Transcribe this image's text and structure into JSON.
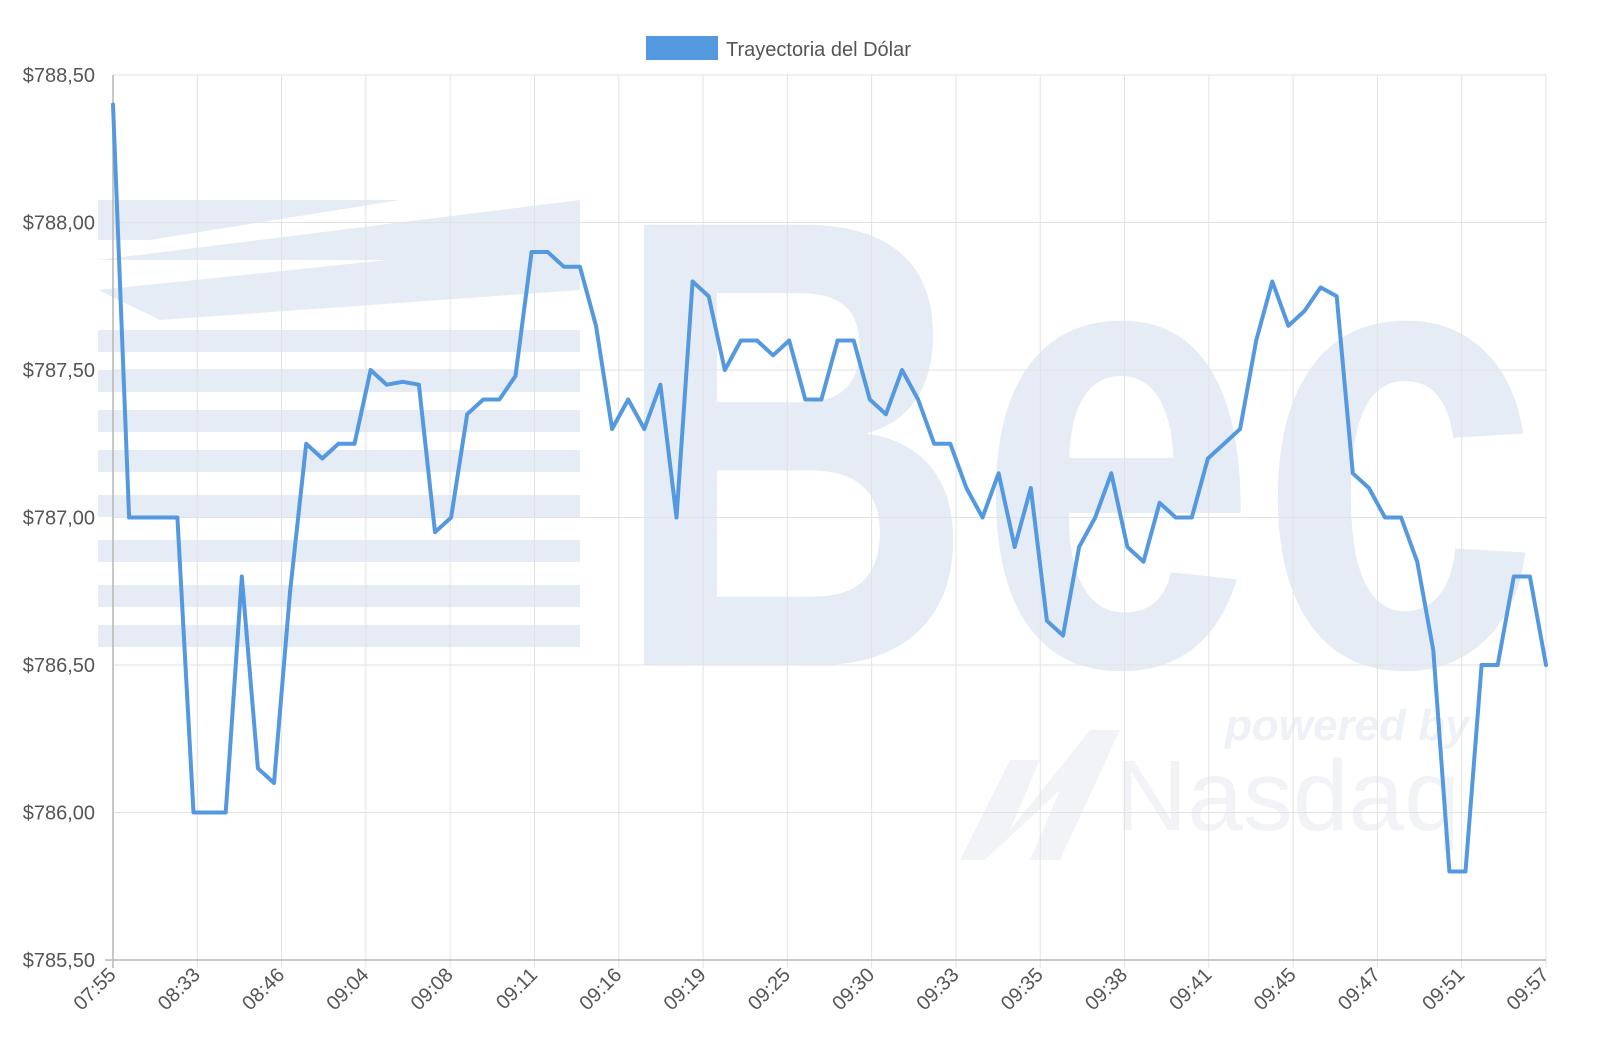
{
  "chart_data": {
    "type": "line",
    "legend_position": "top-center",
    "grid": true,
    "x_tick_labels": [
      "07:55",
      "08:33",
      "08:46",
      "09:04",
      "09:08",
      "09:11",
      "09:16",
      "09:19",
      "09:25",
      "09:30",
      "09:33",
      "09:35",
      "09:38",
      "09:41",
      "09:45",
      "09:47",
      "09:51",
      "09:57"
    ],
    "y_ticks": [
      788.5,
      788.0,
      787.5,
      787.0,
      786.5,
      786.0,
      785.5
    ],
    "y_tick_labels": [
      "$788,50",
      "$788,00",
      "$787,50",
      "$787,00",
      "$786,50",
      "$786,00",
      "$785,50"
    ],
    "ylim": [
      785.5,
      788.5
    ],
    "series": [
      {
        "name": "Trayectoria del Dólar",
        "color": "#5499e0",
        "values": [
          788.4,
          787.0,
          787.0,
          787.0,
          787.0,
          786.0,
          786.0,
          786.0,
          786.8,
          786.15,
          786.1,
          786.75,
          787.25,
          787.2,
          787.25,
          787.25,
          787.5,
          787.45,
          787.46,
          787.45,
          786.95,
          787.0,
          787.35,
          787.4,
          787.4,
          787.48,
          787.9,
          787.9,
          787.85,
          787.85,
          787.65,
          787.3,
          787.4,
          787.3,
          787.45,
          787.0,
          787.8,
          787.75,
          787.5,
          787.6,
          787.6,
          787.55,
          787.6,
          787.4,
          787.4,
          787.6,
          787.6,
          787.4,
          787.35,
          787.5,
          787.4,
          787.25,
          787.25,
          787.1,
          787.0,
          787.15,
          786.9,
          787.1,
          786.65,
          786.6,
          786.9,
          787.0,
          787.15,
          786.9,
          786.85,
          787.05,
          787.0,
          787.0,
          787.2,
          787.25,
          787.3,
          787.6,
          787.8,
          787.65,
          787.7,
          787.78,
          787.75,
          787.15,
          787.1,
          787.0,
          787.0,
          786.85,
          786.55,
          785.8,
          785.8,
          786.5,
          786.5,
          786.8,
          786.8,
          786.5
        ]
      }
    ]
  },
  "watermark": {
    "logo_text": "Bec",
    "powered_text": "powered by",
    "brand_text": "Nasdaq"
  }
}
